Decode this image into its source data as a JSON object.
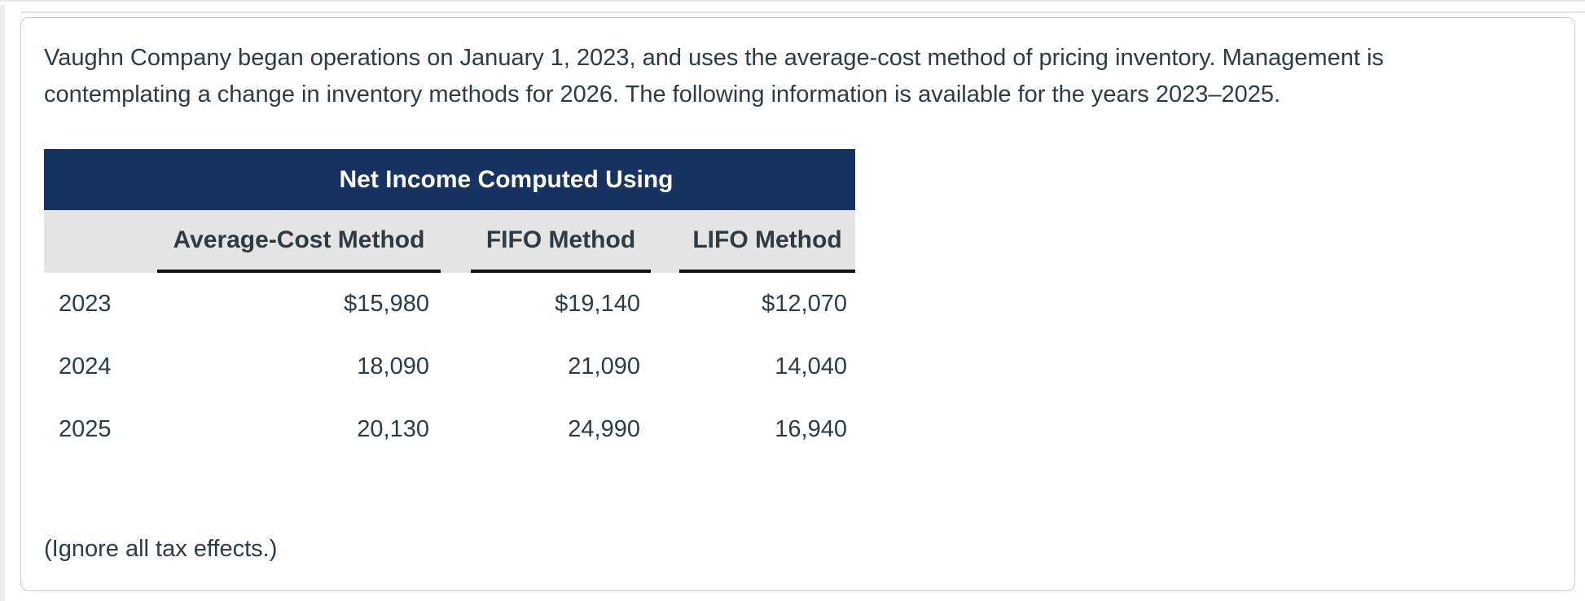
{
  "intro": {
    "lines": [
      "Vaughn Company began operations on January 1, 2023, and uses the average-cost method of pricing inventory. Management is",
      "contemplating a change in inventory methods for 2026. The following information is available for the years 2023–2025."
    ]
  },
  "table": {
    "title": "Net Income Computed Using",
    "columns": [
      "Average-Cost Method",
      "FIFO Method",
      "LIFO Method"
    ],
    "rows": [
      {
        "year": "2023",
        "avg": "$15,980",
        "fifo": "$19,140",
        "lifo": "$12,070"
      },
      {
        "year": "2024",
        "avg": "18,090",
        "fifo": "21,090",
        "lifo": "14,040"
      },
      {
        "year": "2025",
        "avg": "20,130",
        "fifo": "24,990",
        "lifo": "16,940"
      }
    ]
  },
  "footnote": "(Ignore all tax effects.)",
  "colors": {
    "navy_header": "#163361",
    "column_header_gray": "#e4e4e4",
    "text": "#2D3B45",
    "underline": "#111111",
    "card_border": "#c6cacd"
  }
}
